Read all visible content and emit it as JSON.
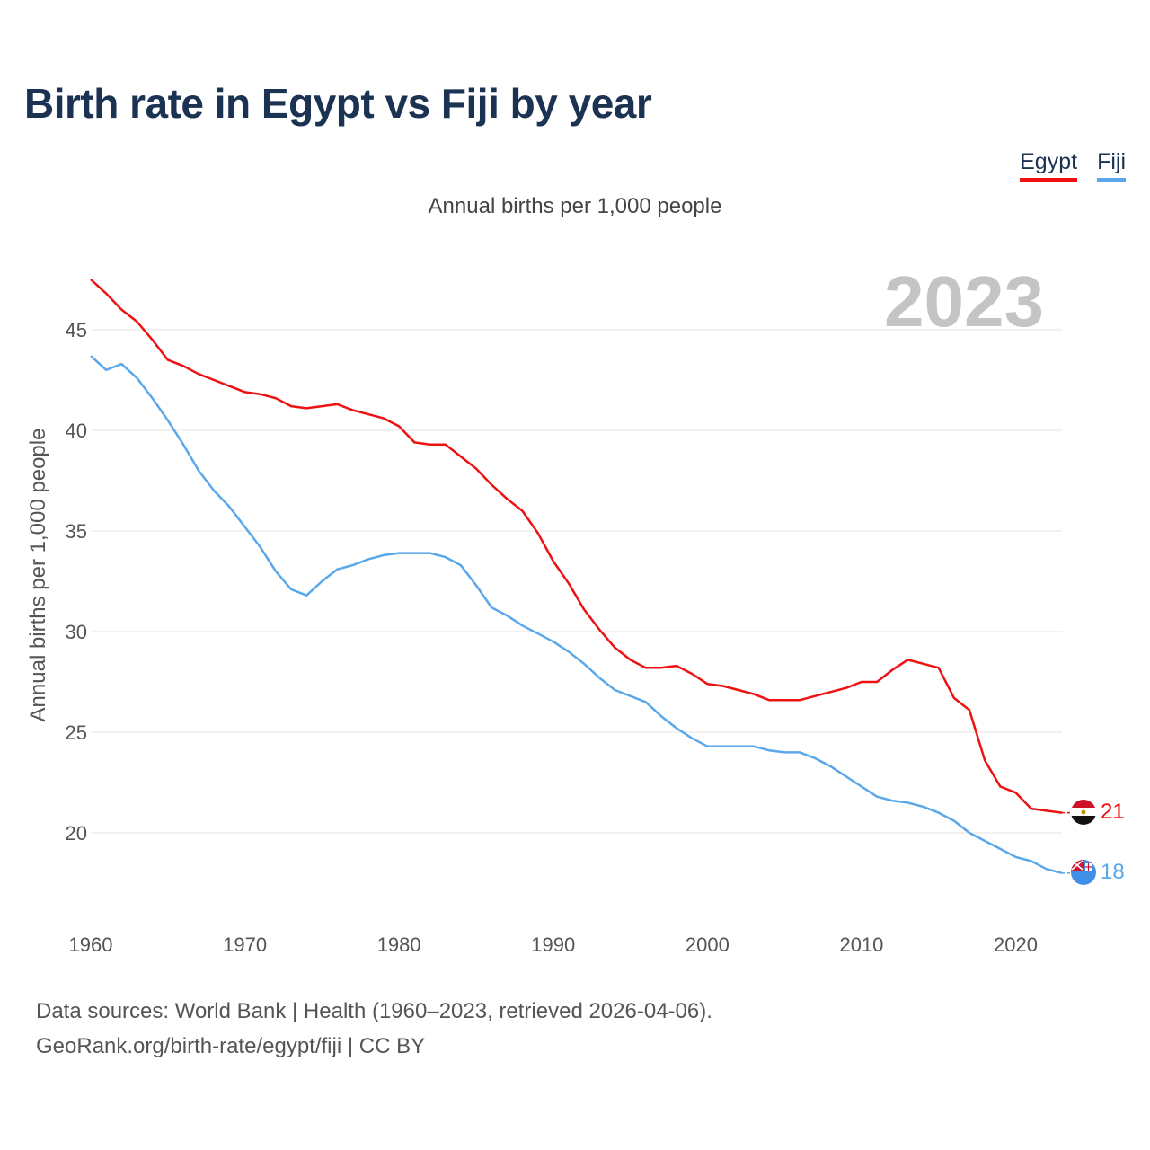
{
  "header": {
    "title": "Birth rate in Egypt vs Fiji by year",
    "subtitle": "Annual births per 1,000 people",
    "year": "2023"
  },
  "legend": {
    "egypt": "Egypt",
    "fiji": "Fiji"
  },
  "footer": {
    "source_line1": "Data sources: World Bank | Health (1960–2023, retrieved 2026-04-06).",
    "source_line2": "GeoRank.org/birth-rate/egypt/fiji | CC BY"
  },
  "colors": {
    "egypt": "#ee1111",
    "fiji": "#5aa7ea",
    "title": "#1b3252",
    "grid": "#e6e6e6"
  },
  "chart_data": {
    "type": "line",
    "title": "Birth rate in Egypt vs Fiji by year",
    "ylabel": "Annual births per 1,000 people",
    "xlabel": "",
    "xlim": [
      1960,
      2023
    ],
    "ylim": [
      17,
      47.5
    ],
    "xticks": [
      1960,
      1970,
      1980,
      1990,
      2000,
      2010,
      2020
    ],
    "yticks": [
      20,
      25,
      30,
      35,
      40,
      45
    ],
    "grid": true,
    "x": [
      1960,
      1961,
      1962,
      1963,
      1964,
      1965,
      1966,
      1967,
      1968,
      1969,
      1970,
      1971,
      1972,
      1973,
      1974,
      1975,
      1976,
      1977,
      1978,
      1979,
      1980,
      1981,
      1982,
      1983,
      1984,
      1985,
      1986,
      1987,
      1988,
      1989,
      1990,
      1991,
      1992,
      1993,
      1994,
      1995,
      1996,
      1997,
      1998,
      1999,
      2000,
      2001,
      2002,
      2003,
      2004,
      2005,
      2006,
      2007,
      2008,
      2009,
      2010,
      2011,
      2012,
      2013,
      2014,
      2015,
      2016,
      2017,
      2018,
      2019,
      2020,
      2021,
      2022,
      2023
    ],
    "series": [
      {
        "name": "Egypt",
        "end_label": "21",
        "values": [
          47.5,
          46.8,
          46.0,
          45.4,
          44.5,
          43.5,
          43.2,
          42.8,
          42.5,
          42.2,
          41.9,
          41.8,
          41.6,
          41.2,
          41.1,
          41.2,
          41.3,
          41.0,
          40.8,
          40.6,
          40.2,
          39.4,
          39.3,
          39.3,
          38.7,
          38.1,
          37.3,
          36.6,
          36.0,
          34.9,
          33.5,
          32.4,
          31.1,
          30.1,
          29.2,
          28.6,
          28.2,
          28.2,
          28.3,
          27.9,
          27.4,
          27.3,
          27.1,
          26.9,
          26.6,
          26.6,
          26.6,
          26.8,
          27.0,
          27.2,
          27.5,
          27.5,
          28.1,
          28.6,
          28.4,
          28.2,
          26.7,
          26.1,
          23.6,
          22.3,
          22.0,
          21.2,
          21.1,
          21.0
        ]
      },
      {
        "name": "Fiji",
        "end_label": "18",
        "values": [
          43.7,
          43.0,
          43.3,
          42.6,
          41.6,
          40.5,
          39.3,
          38.0,
          37.0,
          36.2,
          35.2,
          34.2,
          33.0,
          32.1,
          31.8,
          32.5,
          33.1,
          33.3,
          33.6,
          33.8,
          33.9,
          33.9,
          33.9,
          33.7,
          33.3,
          32.3,
          31.2,
          30.8,
          30.3,
          29.9,
          29.5,
          29.0,
          28.4,
          27.7,
          27.1,
          26.8,
          26.5,
          25.8,
          25.2,
          24.7,
          24.3,
          24.3,
          24.3,
          24.3,
          24.1,
          24.0,
          24.0,
          23.7,
          23.3,
          22.8,
          22.3,
          21.8,
          21.6,
          21.5,
          21.3,
          21.0,
          20.6,
          20.0,
          19.6,
          19.2,
          18.8,
          18.6,
          18.2,
          18.0
        ]
      }
    ]
  }
}
